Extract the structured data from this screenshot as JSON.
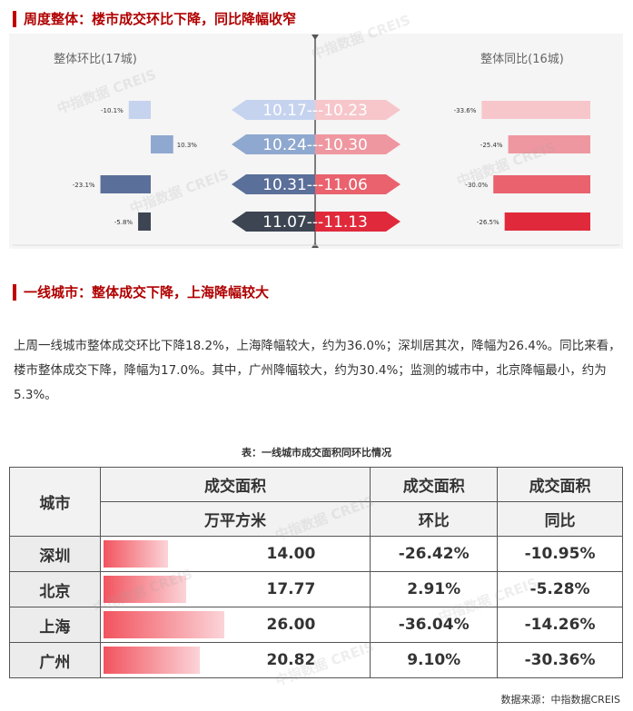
{
  "section1": {
    "title": "周度整体：楼市成交环比下降，同比降幅收窄"
  },
  "chart_data": {
    "type": "bar",
    "left_title": "整体环比(17城)",
    "right_title": "整体同比(16城)",
    "categories": [
      "10.17---10.23",
      "10.24---10.30",
      "10.31---11.06",
      "11.07---11.13"
    ],
    "series": [
      {
        "name": "整体环比(17城)",
        "values": [
          -10.1,
          10.3,
          -23.1,
          -5.8
        ],
        "labels": [
          "-10.1%",
          "10.3%",
          "-23.1%",
          "-5.8%"
        ]
      },
      {
        "name": "整体同比(16城)",
        "values": [
          -33.6,
          -25.4,
          -30.0,
          -26.5
        ],
        "labels": [
          "-33.6%",
          "-25.4%",
          "-30.0%",
          "-26.5%"
        ]
      }
    ],
    "colors": {
      "left": [
        "#c5d3ef",
        "#8fa8cf",
        "#5a6f99",
        "#3d4553"
      ],
      "right": [
        "#f6c6cb",
        "#ef97a0",
        "#e9626d",
        "#e02a3b"
      ],
      "arrow_left": [
        "#c5d3ef",
        "#8fa8cf",
        "#5a6f99",
        "#3d4553"
      ],
      "arrow_right": [
        "#f6c6cb",
        "#ef97a0",
        "#e9626d",
        "#e02a3b"
      ]
    }
  },
  "section2": {
    "title": "一线城市：整体成交下降，上海降幅较大",
    "paragraph": "上周一线城市整体成交环比下降18.2%，上海降幅较大，约为36.0%；深圳居其次，降幅为26.4%。同比来看，楼市整体成交下降，降幅为17.0%。其中，广州降幅较大，约为30.4%；监测的城市中，北京降幅最小，约为5.3%。"
  },
  "table": {
    "title": "表：一线城市成交面积同环比情况",
    "headers": {
      "city": "城市",
      "area_line1": "成交面积",
      "area_line2": "万平方米",
      "mom_line1": "成交面积",
      "mom_line2": "环比",
      "yoy_line1": "成交面积",
      "yoy_line2": "同比"
    },
    "rows": [
      {
        "city": "深圳",
        "area": "14.00",
        "area_value": 14.0,
        "mom": "-26.42%",
        "yoy": "-10.95%"
      },
      {
        "city": "北京",
        "area": "17.77",
        "area_value": 17.77,
        "mom": "2.91%",
        "yoy": "-5.28%"
      },
      {
        "city": "上海",
        "area": "26.00",
        "area_value": 26.0,
        "mom": "-36.04%",
        "yoy": "-14.26%"
      },
      {
        "city": "广州",
        "area": "20.82",
        "area_value": 20.82,
        "mom": "9.10%",
        "yoy": "-30.36%"
      }
    ]
  },
  "source": "数据来源：中指数据CREIS",
  "watermark": "中指数据 CREIS"
}
